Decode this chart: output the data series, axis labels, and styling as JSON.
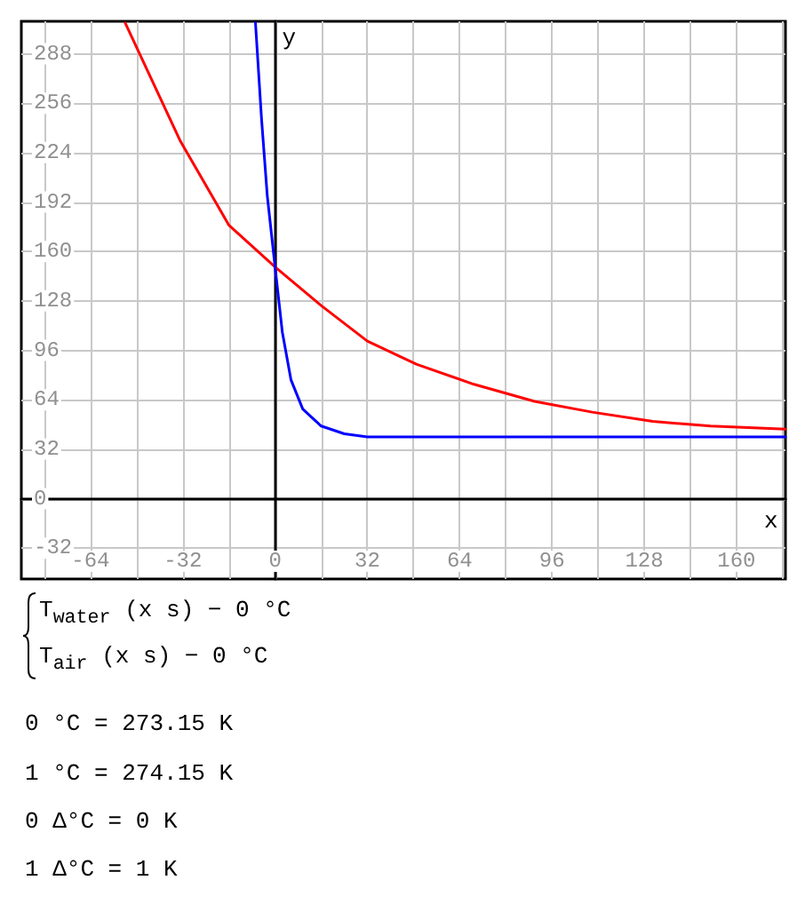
{
  "chart_data": {
    "type": "line",
    "xlabel": "x",
    "ylabel": "y",
    "xlim": [
      -88,
      177
    ],
    "ylim": [
      -52,
      309
    ],
    "xticks": [
      {
        "value": -80,
        "label": null
      },
      -64,
      {
        "value": -48,
        "label": null
      },
      -32,
      {
        "value": -16,
        "label": null
      },
      0,
      {
        "value": 16,
        "label": null
      },
      32,
      {
        "value": 48,
        "label": null
      },
      64,
      {
        "value": 80,
        "label": null
      },
      96,
      {
        "value": 112,
        "label": null
      },
      128,
      {
        "value": 144,
        "label": null
      },
      160,
      {
        "value": 176,
        "label": null
      }
    ],
    "yticks": [
      -32,
      0,
      32,
      64,
      96,
      128,
      160,
      192,
      224,
      256,
      288
    ],
    "grid": true,
    "marker": "none",
    "line_style": "solid",
    "series": [
      {
        "color": "#ff0000",
        "x": [
          -52,
          -33,
          -16,
          0,
          16,
          32,
          49,
          69,
          90,
          110,
          131,
          151,
          177
        ],
        "values": [
          308,
          232,
          177,
          150,
          125,
          102,
          87,
          74,
          63,
          56,
          50,
          47,
          45
        ]
      },
      {
        "color": "#0000ff",
        "x": [
          -6.8,
          -4.7,
          -2.7,
          0,
          2.5,
          5.5,
          9.6,
          16,
          24,
          32,
          49,
          177
        ],
        "values": [
          308,
          246,
          196,
          150,
          108,
          77,
          58,
          47,
          42,
          40,
          40,
          40
        ]
      }
    ],
    "annotations": [
      "T$_{water}$ (x s) − 0 °C",
      "T$_{air}$ (x s) − 0 °C",
      "0 °C = 273.15 K",
      "1 °C = 274.15 K",
      "0 Δ°C = 0 K",
      "1 Δ°C = 1 K"
    ]
  }
}
